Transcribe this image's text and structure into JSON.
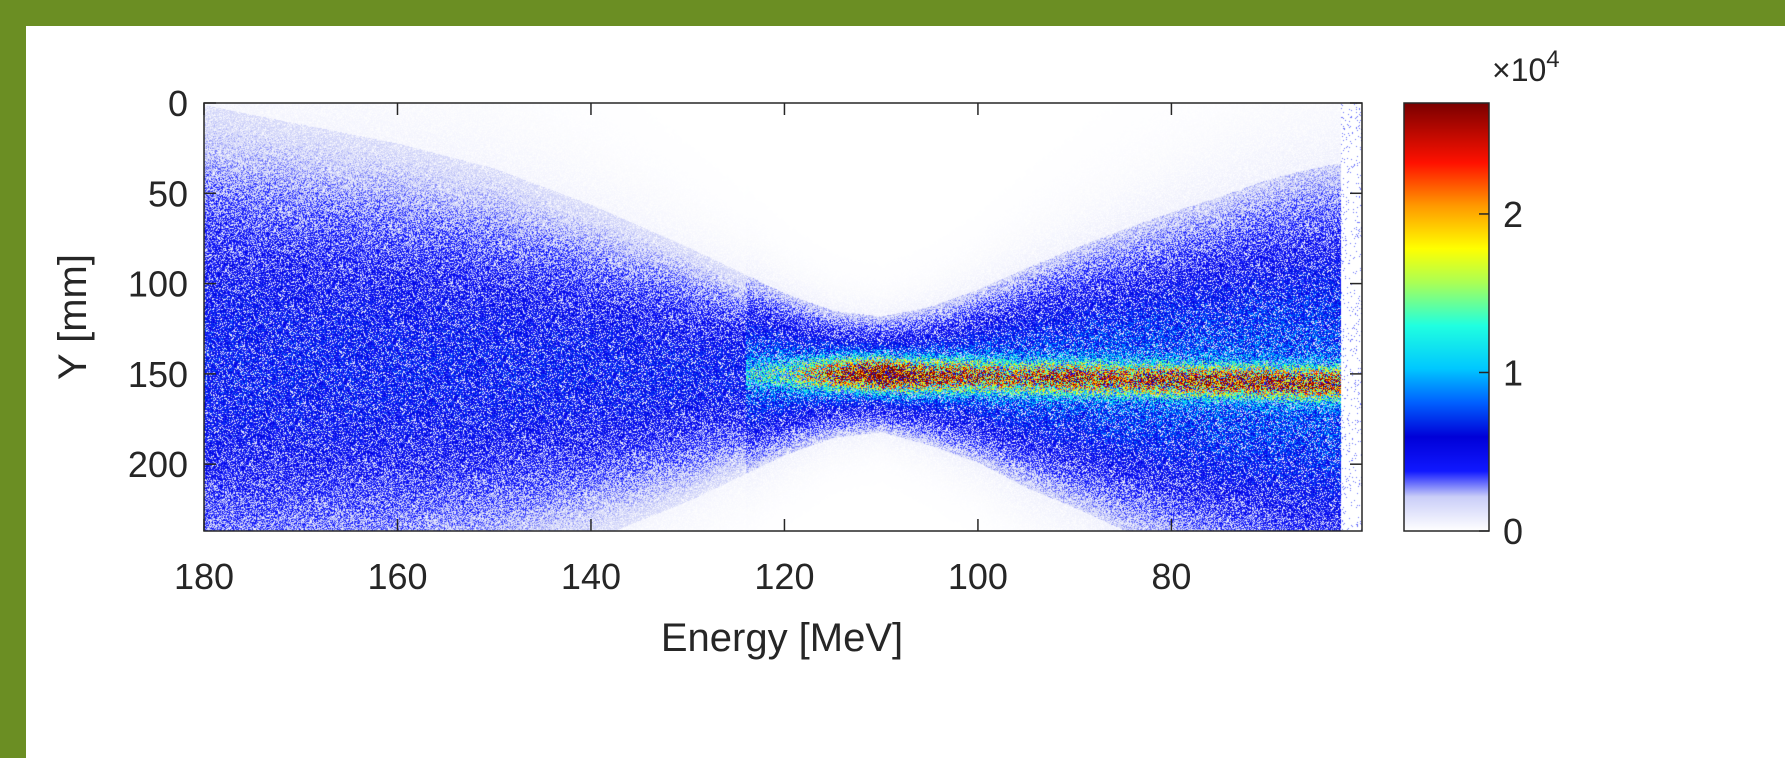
{
  "colors": {
    "frame": "#6b8e23",
    "panel": "#ffffff"
  },
  "chart_data": {
    "type": "heatmap",
    "title": "",
    "xlabel": "Energy [MeV]",
    "ylabel": "Y [mm]",
    "xlim": [
      180,
      60.3
    ],
    "ylim": [
      0,
      237
    ],
    "x_direction": "reverse",
    "y_direction": "reverse",
    "xticks": [
      180,
      160,
      140,
      120,
      100,
      80
    ],
    "xtick_labels": [
      "180",
      "160",
      "140",
      "120",
      "100",
      "80"
    ],
    "yticks": [
      0,
      50,
      100,
      150,
      200
    ],
    "ytick_labels": [
      "0",
      "50",
      "100",
      "150",
      "200"
    ],
    "colormap": "jet (with white at low values)",
    "colorbar": {
      "location": "right",
      "exponent_label": "×10",
      "exponent_superscript": "4",
      "ticks": [
        0,
        1,
        2
      ],
      "tick_labels": [
        "0",
        "1",
        "2"
      ],
      "range": [
        0,
        2.7
      ]
    },
    "beam": {
      "description_note": "electron spectrum: signal concentrated near Y≈150 mm, focusing near 110 MeV, peak intensity near 108-112 MeV",
      "energy": [
        180,
        170,
        160,
        150,
        140,
        130,
        120,
        115,
        110,
        105,
        100,
        95,
        90,
        85,
        80,
        75,
        70,
        66,
        63
      ],
      "center_mm": [
        145,
        146,
        147,
        148,
        149,
        150,
        150,
        150,
        150,
        151,
        151,
        152,
        152,
        153,
        153,
        154,
        154,
        155,
        155
      ],
      "core_halfwidth_mm": [
        90,
        84,
        78,
        70,
        58,
        44,
        28,
        22,
        20,
        24,
        30,
        38,
        45,
        52,
        58,
        64,
        70,
        74,
        76
      ],
      "peak_value": [
        0.55,
        0.55,
        0.55,
        0.6,
        0.65,
        0.75,
        1.0,
        1.9,
        2.6,
        2.1,
        1.9,
        1.8,
        2.0,
        1.9,
        2.0,
        2.05,
        2.1,
        2.1,
        2.0
      ]
    },
    "grid": false,
    "legend": "none"
  }
}
